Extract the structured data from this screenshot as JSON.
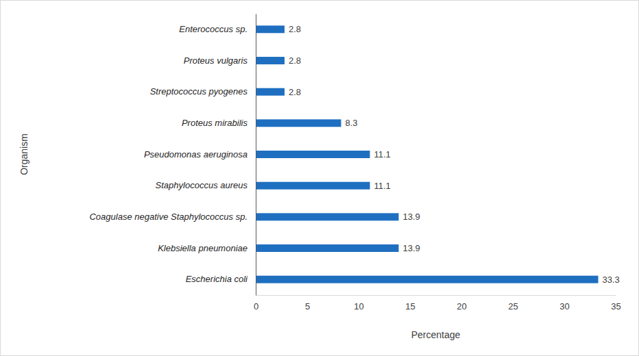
{
  "chart_data": {
    "type": "bar",
    "orientation": "horizontal",
    "categories": [
      "Enterococcus sp.",
      "Proteus vulgaris",
      "Streptococcus pyogenes",
      "Proteus mirabilis",
      "Pseudomonas aeruginosa",
      "Staphylococcus aureus",
      "Coagulase negative Staphylococcus sp.",
      "Klebsiella pneumoniae",
      "Escherichia coli"
    ],
    "values": [
      2.8,
      2.8,
      2.8,
      8.3,
      11.1,
      11.1,
      13.9,
      13.9,
      33.3
    ],
    "color": "#1f6fc1",
    "x_label": "Percentage",
    "y_label": "Organism",
    "xlim": [
      0,
      35
    ],
    "xticks": [
      0,
      5,
      10,
      15,
      20,
      25,
      30,
      35
    ],
    "grid": false,
    "data_labels": true
  }
}
